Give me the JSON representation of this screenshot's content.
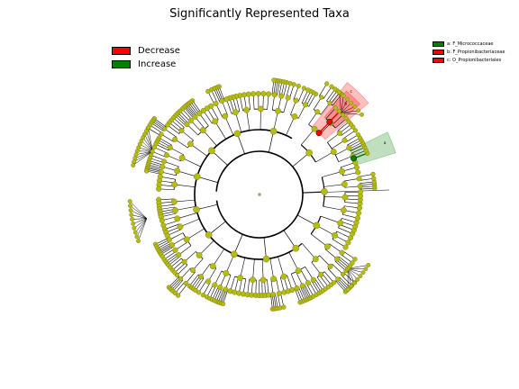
{
  "title": "Significantly Represented Taxa",
  "groups": [
    {
      "label": "Decrease",
      "color": "#ff0000"
    },
    {
      "label": "Increase",
      "color": "#008000"
    }
  ],
  "clades": [
    {
      "label": "a: F_Micrococcaceae",
      "color": "#008000",
      "marker": "a"
    },
    {
      "label": "b: F_Propionibacteriaceae",
      "color": "#ff0000",
      "marker": "b"
    },
    {
      "label": "c: O_Propionibacteriales",
      "color": "#ff0000",
      "marker": "c"
    }
  ],
  "colors": {
    "node": "#b5bd14",
    "ring": "#000000"
  }
}
